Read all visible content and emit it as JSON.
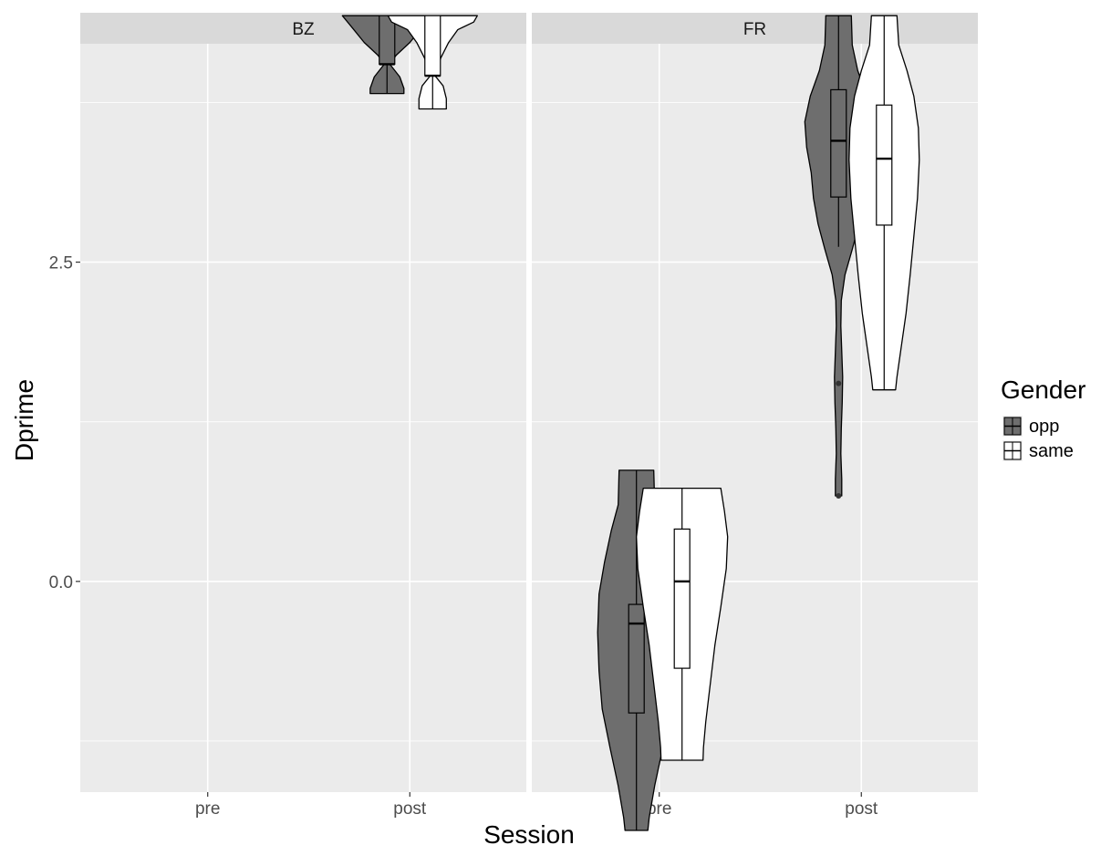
{
  "chart_data": {
    "type": "violin",
    "xlabel": "Session",
    "ylabel": "Dprime",
    "ylim": [
      -1.65,
      4.21
    ],
    "y_ticks": [
      0.0,
      2.5
    ],
    "y_tick_labels": [
      "0.0",
      "2.5"
    ],
    "y_minor_ticks": [
      -1.25,
      1.25,
      3.75
    ],
    "categories": [
      "pre",
      "post"
    ],
    "facets": [
      "BZ",
      "FR"
    ],
    "legend": {
      "title": "Gender",
      "position": "right",
      "entries": [
        {
          "key": "opp",
          "fill": "#6e6e6e"
        },
        {
          "key": "same",
          "fill": "#ffffff"
        }
      ]
    },
    "colors": {
      "opp": "#6e6e6e",
      "same": "#ffffff",
      "panel_bg": "#ebebeb",
      "strip_bg": "#d9d9d9",
      "grid": "#ffffff"
    },
    "grid": true,
    "groups": [
      {
        "facet": "BZ",
        "session": "post",
        "gender": "opp",
        "box": {
          "lower_whisker": 3.82,
          "q1": 4.05,
          "median": 4.05,
          "q3": 4.43,
          "upper_whisker": 4.43
        },
        "outliers": [],
        "density_profile": [
          [
            4.43,
            0.98
          ],
          [
            4.33,
            0.75
          ],
          [
            4.22,
            0.5
          ],
          [
            4.12,
            0.2
          ],
          [
            4.05,
            0.06
          ],
          [
            3.95,
            0.28
          ],
          [
            3.86,
            0.37
          ],
          [
            3.82,
            0.37
          ]
        ]
      },
      {
        "facet": "BZ",
        "session": "post",
        "gender": "same",
        "box": {
          "lower_whisker": 3.7,
          "q1": 3.96,
          "median": 3.96,
          "q3": 4.43,
          "upper_whisker": 4.43
        },
        "outliers": [],
        "density_profile": [
          [
            4.43,
            0.98
          ],
          [
            4.38,
            0.9
          ],
          [
            4.32,
            0.55
          ],
          [
            4.22,
            0.35
          ],
          [
            4.1,
            0.18
          ],
          [
            3.96,
            0.05
          ],
          [
            3.88,
            0.23
          ],
          [
            3.78,
            0.3
          ],
          [
            3.7,
            0.3
          ]
        ]
      },
      {
        "facet": "FR",
        "session": "pre",
        "gender": "opp",
        "box": {
          "lower_whisker": -1.95,
          "q1": -1.03,
          "median": -0.33,
          "q3": -0.18,
          "upper_whisker": 0.87
        },
        "outliers": [],
        "density_profile": [
          [
            0.87,
            0.38
          ],
          [
            0.6,
            0.4
          ],
          [
            0.4,
            0.55
          ],
          [
            0.15,
            0.7
          ],
          [
            -0.1,
            0.82
          ],
          [
            -0.4,
            0.85
          ],
          [
            -0.7,
            0.82
          ],
          [
            -1.0,
            0.75
          ],
          [
            -1.3,
            0.58
          ],
          [
            -1.6,
            0.4
          ],
          [
            -1.85,
            0.28
          ],
          [
            -1.95,
            0.25
          ]
        ]
      },
      {
        "facet": "FR",
        "session": "pre",
        "gender": "same",
        "box": {
          "lower_whisker": -1.4,
          "q1": -0.68,
          "median": 0.0,
          "q3": 0.41,
          "upper_whisker": 0.73
        },
        "outliers": [],
        "density_profile": [
          [
            0.73,
            0.85
          ],
          [
            0.55,
            0.93
          ],
          [
            0.35,
            1.0
          ],
          [
            0.1,
            0.97
          ],
          [
            -0.2,
            0.85
          ],
          [
            -0.5,
            0.72
          ],
          [
            -0.8,
            0.62
          ],
          [
            -1.1,
            0.52
          ],
          [
            -1.3,
            0.47
          ],
          [
            -1.4,
            0.46
          ]
        ]
      },
      {
        "facet": "FR",
        "session": "post",
        "gender": "opp",
        "box": {
          "lower_whisker": 2.62,
          "q1": 3.01,
          "median": 3.45,
          "q3": 3.85,
          "upper_whisker": 4.43
        },
        "outliers": [
          1.55,
          0.67
        ],
        "density_profile": [
          [
            4.43,
            0.28
          ],
          [
            4.2,
            0.3
          ],
          [
            4.0,
            0.42
          ],
          [
            3.8,
            0.62
          ],
          [
            3.6,
            0.74
          ],
          [
            3.4,
            0.7
          ],
          [
            3.2,
            0.6
          ],
          [
            3.0,
            0.55
          ],
          [
            2.8,
            0.45
          ],
          [
            2.6,
            0.3
          ],
          [
            2.4,
            0.14
          ],
          [
            2.2,
            0.06
          ],
          [
            2.0,
            0.05
          ],
          [
            1.8,
            0.07
          ],
          [
            1.6,
            0.09
          ],
          [
            1.4,
            0.08
          ],
          [
            1.2,
            0.06
          ],
          [
            1.0,
            0.05
          ],
          [
            0.8,
            0.07
          ],
          [
            0.67,
            0.07
          ]
        ]
      },
      {
        "facet": "FR",
        "session": "post",
        "gender": "same",
        "box": {
          "lower_whisker": 1.5,
          "q1": 2.79,
          "median": 3.31,
          "q3": 3.73,
          "upper_whisker": 4.43
        },
        "outliers": [],
        "density_profile": [
          [
            4.43,
            0.28
          ],
          [
            4.2,
            0.32
          ],
          [
            4.0,
            0.5
          ],
          [
            3.8,
            0.65
          ],
          [
            3.55,
            0.75
          ],
          [
            3.3,
            0.77
          ],
          [
            3.0,
            0.73
          ],
          [
            2.7,
            0.65
          ],
          [
            2.4,
            0.57
          ],
          [
            2.1,
            0.48
          ],
          [
            1.8,
            0.36
          ],
          [
            1.6,
            0.28
          ],
          [
            1.5,
            0.25
          ]
        ]
      }
    ]
  }
}
